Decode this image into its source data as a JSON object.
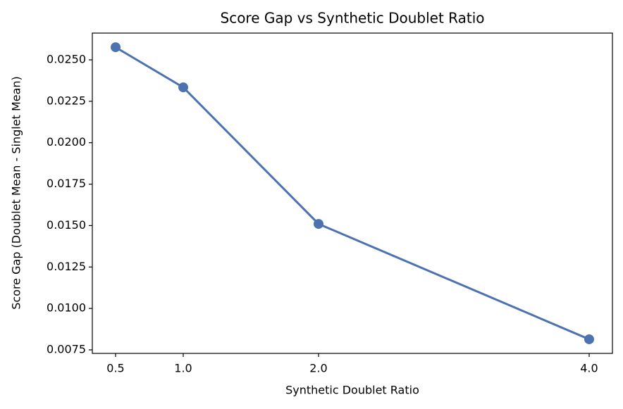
{
  "chart_data": {
    "type": "line",
    "title": "Score Gap vs Synthetic Doublet Ratio",
    "xlabel": "Synthetic Doublet Ratio",
    "ylabel": "Score Gap (Doublet Mean - Singlet Mean)",
    "x": [
      0.5,
      1.0,
      2.0,
      4.0
    ],
    "values": [
      0.02576,
      0.02334,
      0.0151,
      0.00814
    ],
    "color": "#4c72b0",
    "xlim": [
      0.328,
      4.172
    ],
    "xticks": [
      0.5,
      {
        "value": 1,
        "label": "1.0"
      },
      {
        "value": 2,
        "label": "2.0"
      },
      {
        "value": 4,
        "label": "4.0"
      }
    ],
    "ylim": [
      0.007288,
      0.026614
    ],
    "yticks": [
      0.0075,
      {
        "value": 0.01,
        "label": "0.0100"
      },
      0.0125,
      {
        "value": 0.015,
        "label": "0.0150"
      },
      0.0175,
      {
        "value": 0.02,
        "label": "0.0200"
      },
      0.0225,
      {
        "value": 0.025,
        "label": "0.0250"
      }
    ],
    "grid": false
  }
}
